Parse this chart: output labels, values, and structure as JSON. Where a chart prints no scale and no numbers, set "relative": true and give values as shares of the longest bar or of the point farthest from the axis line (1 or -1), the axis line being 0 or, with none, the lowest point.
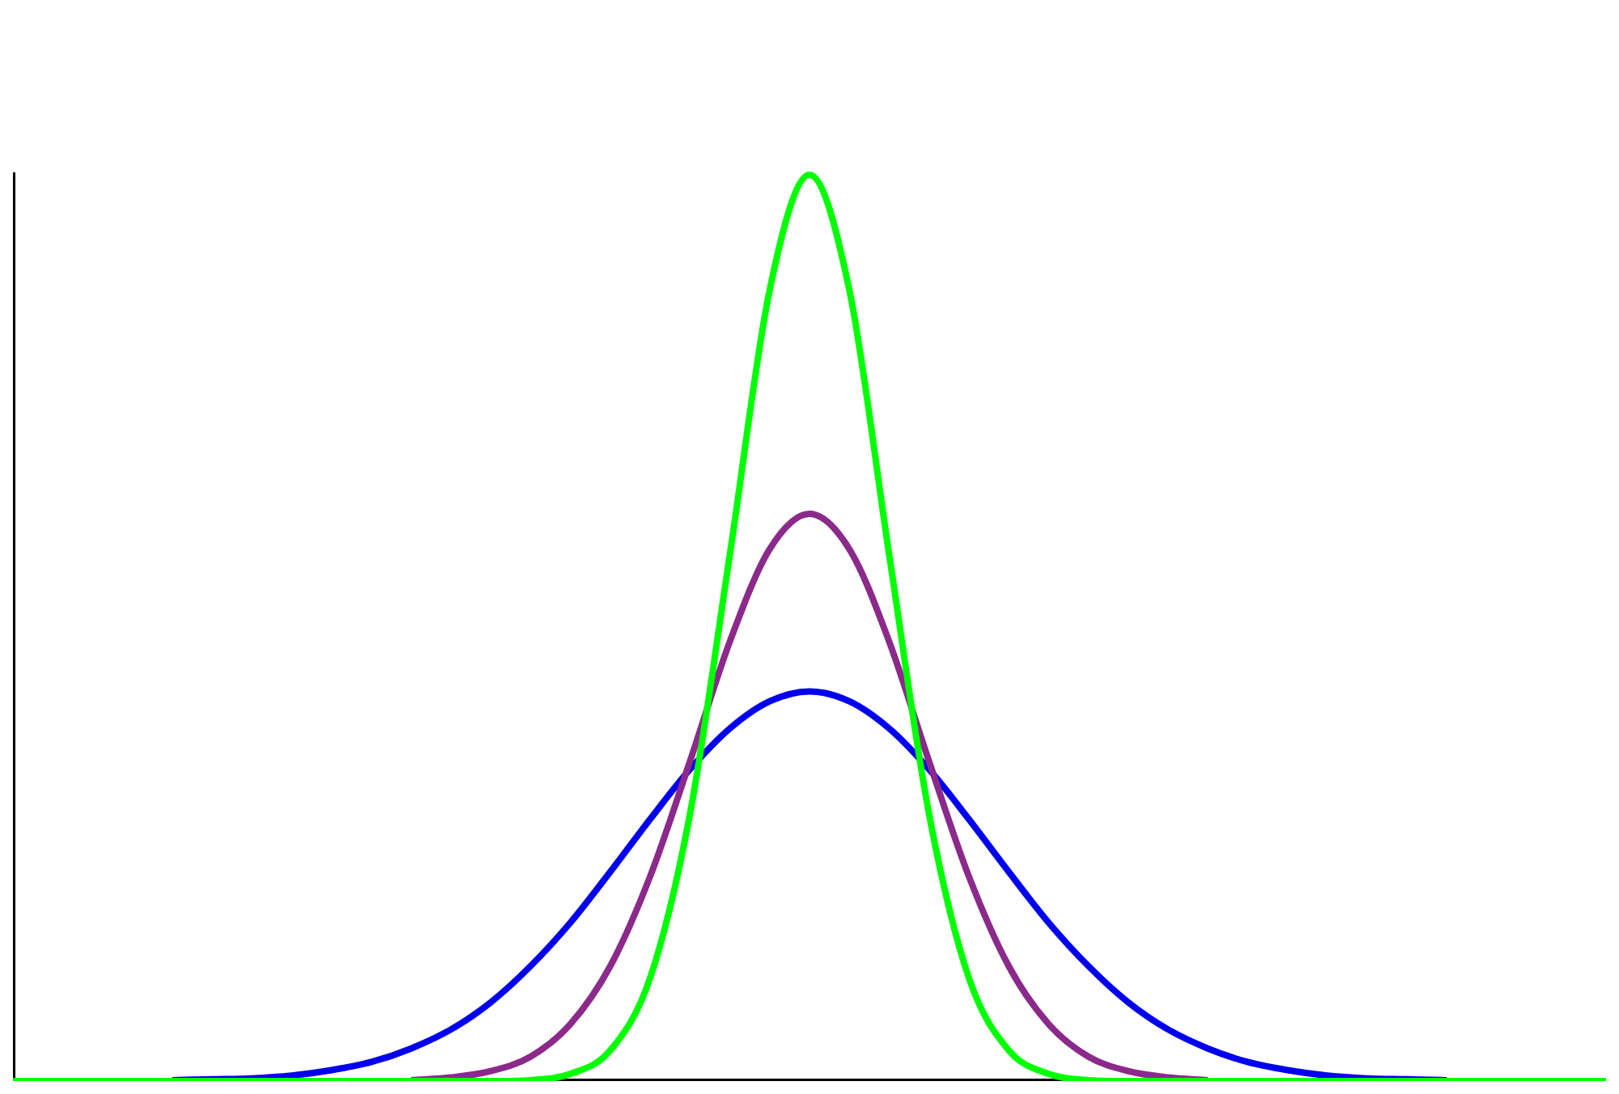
{
  "chart_data": {
    "type": "line",
    "relative": true,
    "grid": false,
    "legend": false,
    "categories": [
      null,
      null,
      null,
      null,
      null,
      null,
      null,
      null,
      null,
      null,
      null,
      null,
      null,
      null,
      null,
      null,
      null,
      null,
      null,
      null,
      null,
      null,
      null,
      null,
      null,
      null,
      null,
      null,
      null,
      null,
      null,
      null,
      null,
      null,
      null,
      null,
      null,
      null,
      null,
      null,
      null
    ],
    "series": [
      {
        "color": "#0000ee",
        "values": [
          null,
          null,
          null,
          null,
          0.001,
          0.002,
          0.003,
          0.006,
          0.012,
          0.021,
          0.036,
          0.057,
          0.087,
          0.127,
          0.175,
          0.231,
          0.289,
          0.344,
          0.389,
          0.419,
          0.43,
          0.419,
          0.389,
          0.344,
          0.289,
          0.231,
          0.175,
          0.127,
          0.087,
          0.057,
          0.036,
          0.021,
          0.012,
          0.006,
          0.003,
          0.002,
          0.001,
          null,
          null,
          null,
          null
        ]
      },
      {
        "color": "#8b2a8b",
        "values": [
          null,
          null,
          null,
          null,
          null,
          null,
          null,
          null,
          null,
          null,
          0.001,
          0.004,
          0.011,
          0.027,
          0.063,
          0.127,
          0.226,
          0.353,
          0.485,
          0.587,
          0.626,
          0.587,
          0.485,
          0.353,
          0.226,
          0.127,
          0.063,
          0.027,
          0.011,
          0.004,
          0.001,
          null,
          null,
          null,
          null,
          null,
          null,
          null,
          null,
          null,
          null
        ]
      },
      {
        "color": "#00ff00",
        "values": [
          0,
          0,
          0,
          0,
          0,
          0,
          0,
          0,
          0,
          0,
          0,
          0,
          0,
          0.001,
          0.008,
          0.034,
          0.114,
          0.295,
          0.581,
          0.873,
          1,
          0.873,
          0.581,
          0.295,
          0.114,
          0.034,
          0.008,
          0.001,
          0,
          0,
          0,
          0,
          0,
          0,
          0,
          0,
          0,
          0,
          0,
          0,
          0
        ]
      }
    ]
  }
}
